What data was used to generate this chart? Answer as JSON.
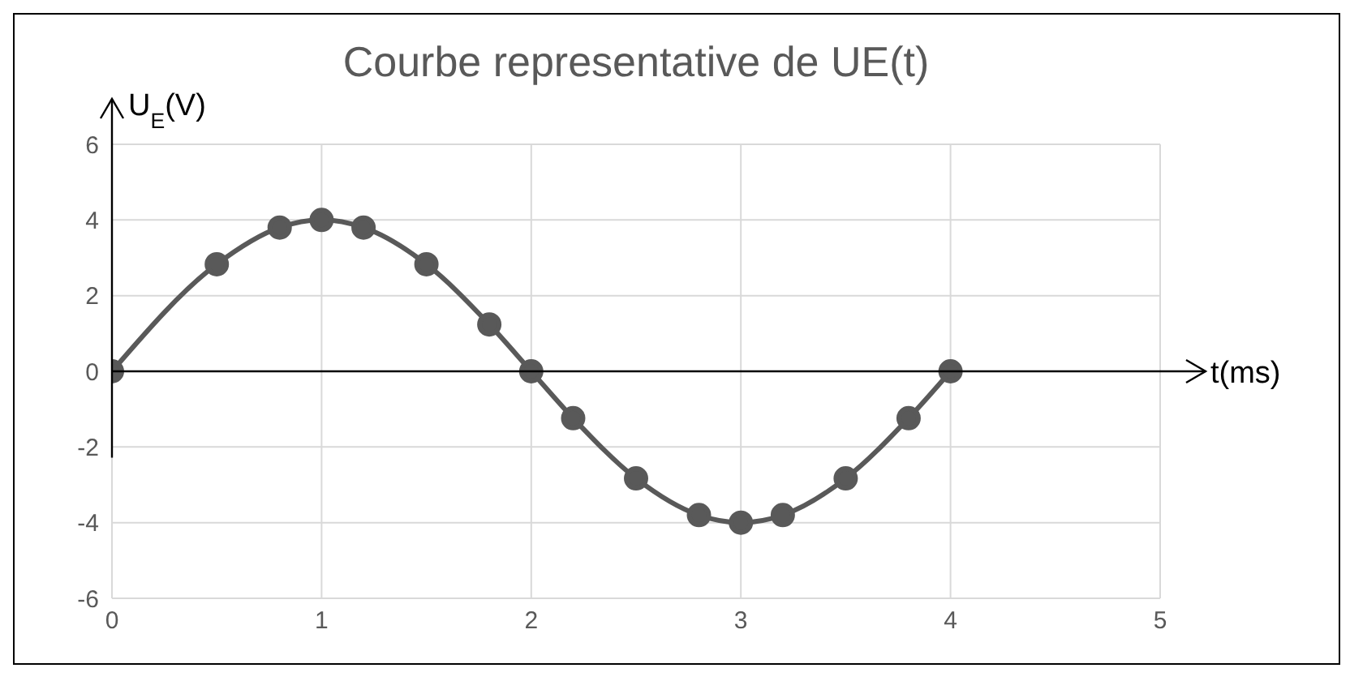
{
  "chart_data": {
    "type": "line",
    "title": "Courbe representative de UE(t)",
    "xlabel": "t(ms)",
    "ylabel": "U$_{E}$(V)",
    "x": [
      0,
      0.5,
      0.8,
      1,
      1.2,
      1.5,
      1.8,
      2,
      2.2,
      2.5,
      2.8,
      3,
      3.2,
      3.5,
      3.8,
      4
    ],
    "series": [
      {
        "color": "#595959",
        "values": [
          0,
          2.83,
          3.8,
          4,
          3.8,
          2.83,
          1.24,
          0,
          -1.24,
          -2.83,
          -3.8,
          -4,
          -3.8,
          -2.83,
          -1.24,
          0
        ]
      }
    ],
    "xlim": [
      0,
      5
    ],
    "xticks": [
      0,
      1,
      2,
      3,
      4,
      5
    ],
    "ylim": [
      -6,
      6
    ],
    "yticks": [
      -6,
      -4,
      -2,
      0,
      2,
      4,
      6
    ],
    "grid": true,
    "marker": "circle",
    "line_style": "solid"
  }
}
